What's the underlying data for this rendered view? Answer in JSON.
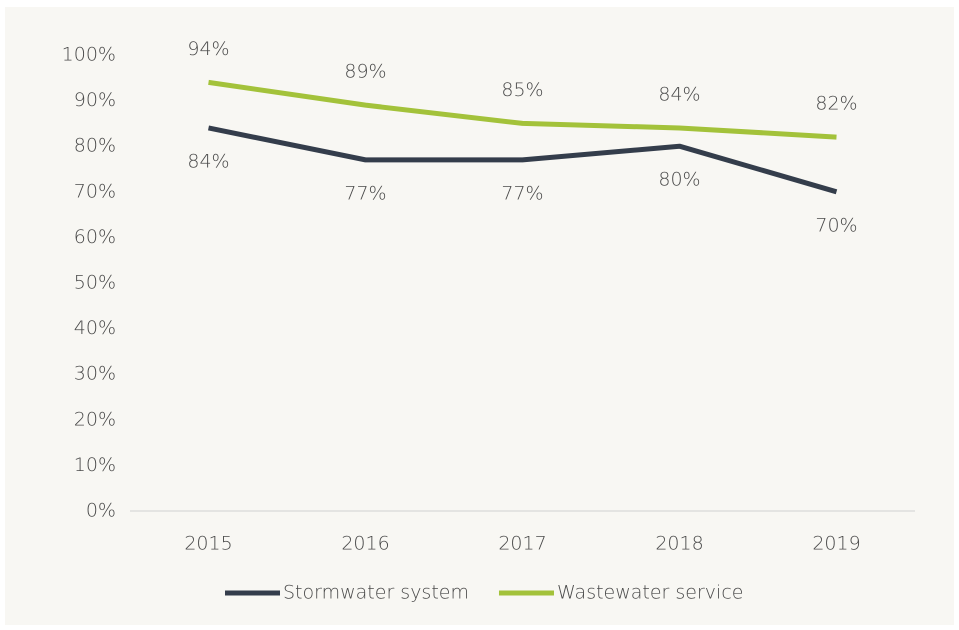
{
  "chart_data": {
    "type": "line",
    "categories": [
      "2015",
      "2016",
      "2017",
      "2018",
      "2019"
    ],
    "series": [
      {
        "name": "Stormwater system",
        "color": "#343d4b",
        "values": [
          84,
          77,
          77,
          80,
          70
        ],
        "value_labels": [
          "84%",
          "77%",
          "77%",
          "80%",
          "70%"
        ]
      },
      {
        "name": "Wastewater service",
        "color": "#a3c23a",
        "values": [
          94,
          89,
          85,
          84,
          82
        ],
        "value_labels": [
          "94%",
          "89%",
          "85%",
          "84%",
          "82%"
        ]
      }
    ],
    "ylim": [
      0,
      100
    ],
    "yticks": [
      {
        "value": 0,
        "label": "0%"
      },
      {
        "value": 10,
        "label": "10%"
      },
      {
        "value": 20,
        "label": "20%"
      },
      {
        "value": 30,
        "label": "30%"
      },
      {
        "value": 40,
        "label": "40%"
      },
      {
        "value": 50,
        "label": "50%"
      },
      {
        "value": 60,
        "label": "60%"
      },
      {
        "value": 70,
        "label": "70%"
      },
      {
        "value": 80,
        "label": "80%"
      },
      {
        "value": 90,
        "label": "90%"
      },
      {
        "value": 100,
        "label": "100%"
      }
    ],
    "grid": false,
    "legend": "bottom"
  }
}
